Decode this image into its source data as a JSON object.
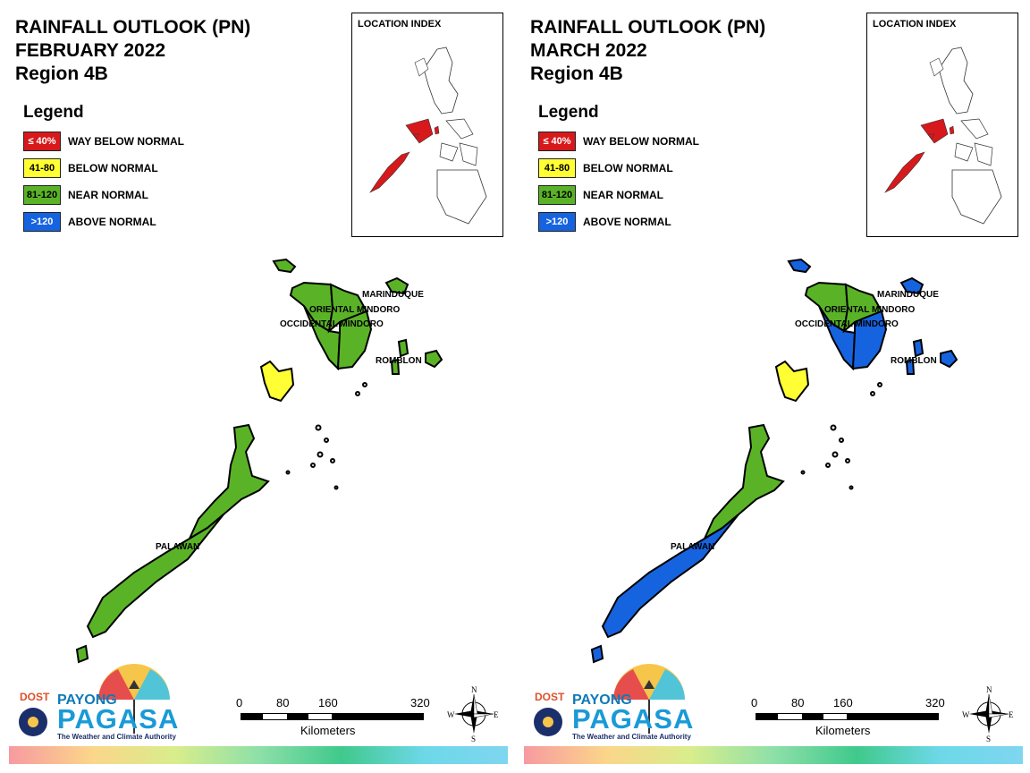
{
  "colors": {
    "way_below": "#d7191c",
    "below": "#ffff33",
    "near": "#5ab327",
    "above": "#1663e0",
    "outline": "#000000"
  },
  "location_index_title": "LOCATION INDEX",
  "legend": {
    "title": "Legend",
    "items": [
      {
        "code": "≤ 40%",
        "label": "WAY BELOW NORMAL",
        "color": "#d7191c",
        "text_color": "#ffffff"
      },
      {
        "code": "41-80",
        "label": "BELOW NORMAL",
        "color": "#ffff33",
        "text_color": "#000000"
      },
      {
        "code": "81-120",
        "label": "NEAR NORMAL",
        "color": "#5ab327",
        "text_color": "#000000"
      },
      {
        "code": ">120",
        "label": "ABOVE NORMAL",
        "color": "#1663e0",
        "text_color": "#ffffff"
      }
    ]
  },
  "map_labels": {
    "marinduque": "MARINDUQUE",
    "oriental_mindoro": "ORIENTAL MINDORO",
    "occidental_mindoro": "OCCIDENTAL MINDORO",
    "romblon": "ROMBLON",
    "palawan": "PALAWAN"
  },
  "panels": [
    {
      "title1": "RAINFALL OUTLOOK (PN)",
      "title2": "FEBRUARY 2022",
      "title3": "Region 4B",
      "provinces": {
        "palawan_south": "near",
        "palawan_north": "near",
        "calamian": "below",
        "occidental_mindoro_north": "near",
        "occidental_mindoro_south": "near",
        "oriental_mindoro_north": "near",
        "oriental_mindoro_south": "near",
        "lubang": "near",
        "marinduque": "near",
        "romblon": "near"
      }
    },
    {
      "title1": "RAINFALL OUTLOOK (PN)",
      "title2": "MARCH 2022",
      "title3": "Region 4B",
      "provinces": {
        "palawan_south": "above",
        "palawan_north": "near",
        "calamian": "below",
        "occidental_mindoro_north": "near",
        "occidental_mindoro_south": "above",
        "oriental_mindoro_north": "near",
        "oriental_mindoro_south": "above",
        "lubang": "above",
        "marinduque": "above",
        "romblon": "above"
      }
    }
  ],
  "branding": {
    "dost": "DOST",
    "payong": "PAYONG",
    "pagasa": "PAGASA",
    "tagline": "The Weather and Climate Authority"
  },
  "scale": {
    "ticks": [
      "0",
      "80",
      "160",
      "320"
    ],
    "unit": "Kilometers"
  },
  "compass": {
    "n": "N",
    "e": "E",
    "s": "S",
    "w": "W"
  }
}
